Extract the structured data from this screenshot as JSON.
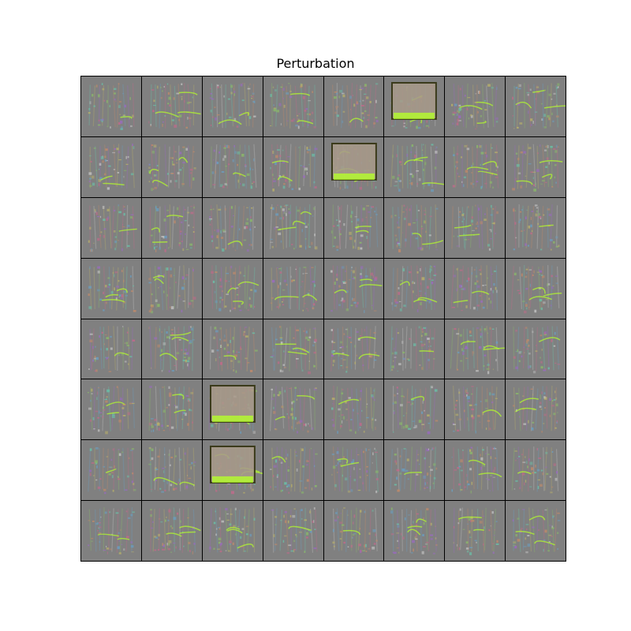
{
  "figure": {
    "title": "Perturbation",
    "grid": {
      "rows": 8,
      "cols": 8
    },
    "colors": {
      "background": "#808080",
      "noise": [
        "#c06a8a",
        "#6a9ec0",
        "#8ab86a",
        "#c08a6a",
        "#9a6ac0",
        "#6ac0a8",
        "#b8b06a",
        "#c0c0c0"
      ],
      "highlight": "#b5ff2a",
      "shape_fill": "#a89a8a"
    },
    "feature_tiles": [
      5,
      12,
      42,
      50
    ]
  }
}
